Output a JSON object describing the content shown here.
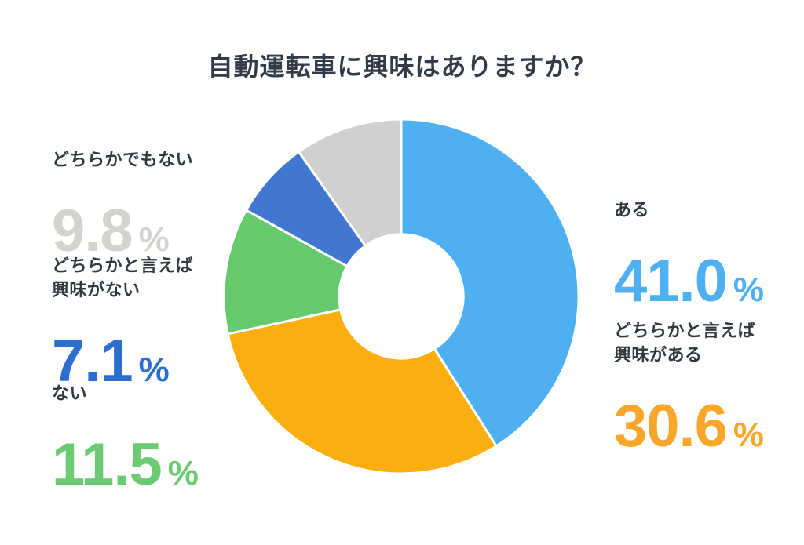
{
  "title": "自動運転車に興味はありますか？",
  "chart_data": {
    "type": "pie",
    "donut": true,
    "title": "自動運転車に興味はありますか？",
    "start_angle_deg": 0,
    "direction": "clockwise",
    "inner_radius_ratio": 0.35,
    "unit": "%",
    "categories": [
      "ある",
      "どちらかと言えば興味がある",
      "ない",
      "どちらかと言えば興味がない",
      "どちらかでもない"
    ],
    "values": [
      41.0,
      30.6,
      11.5,
      7.1,
      9.8
    ],
    "colors": [
      "#4fb0f1",
      "#fcad0f",
      "#66c96d",
      "#4077d1",
      "#d1d0ce"
    ],
    "slice_border_color": "#ffffff",
    "background_color": "#ffffff",
    "legend_position": "none",
    "labels_as_callouts": true
  },
  "callouts": {
    "left": [
      {
        "label": "どちらかでもない",
        "value": "9.8",
        "unit": "%",
        "color": "#d5d3d0"
      },
      {
        "label": "どちらかと言えば\n興味がない",
        "value": "7.1",
        "unit": "%",
        "color": "#2d6fd0"
      },
      {
        "label": "ない",
        "value": "11.5",
        "unit": "%",
        "color": "#6ccb72"
      }
    ],
    "right": [
      {
        "label": "ある",
        "value": "41.0",
        "unit": "%",
        "color": "#4fb0f1"
      },
      {
        "label": "どちらかと言えば\n興味がある",
        "value": "30.6",
        "unit": "%",
        "color": "#f9a72b"
      }
    ]
  }
}
